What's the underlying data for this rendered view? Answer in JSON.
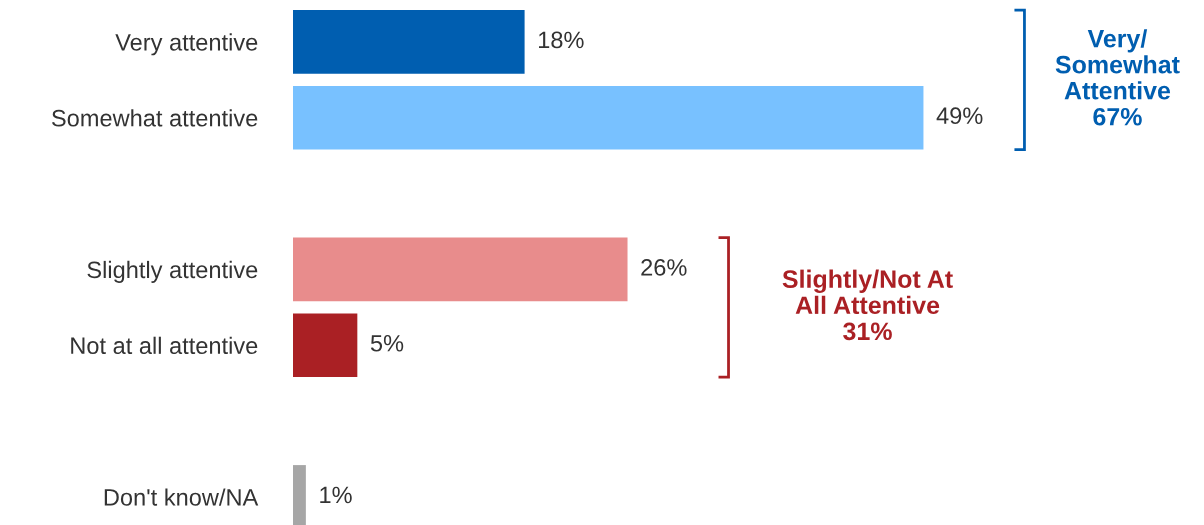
{
  "chart_data": {
    "type": "bar",
    "orientation": "horizontal",
    "categories": [
      "Very attentive",
      "Somewhat attentive",
      null,
      "Slightly attentive",
      "Not at all attentive",
      null,
      "Don't know/NA"
    ],
    "values": [
      18,
      49,
      null,
      26,
      5,
      null,
      1
    ],
    "colors": [
      "#005eb0",
      "#78c1ff",
      null,
      "#e88c8c",
      "#aa2024",
      null,
      "#a6a6a6"
    ],
    "value_labels": [
      "18%",
      "49%",
      null,
      "26%",
      "5%",
      null,
      "1%"
    ],
    "annotations": [
      "Very/\nSomewhat\nAttentive\n67%",
      "Slightly/Not At\nAll Attentive\n31%"
    ],
    "grid": false,
    "legend": false
  }
}
